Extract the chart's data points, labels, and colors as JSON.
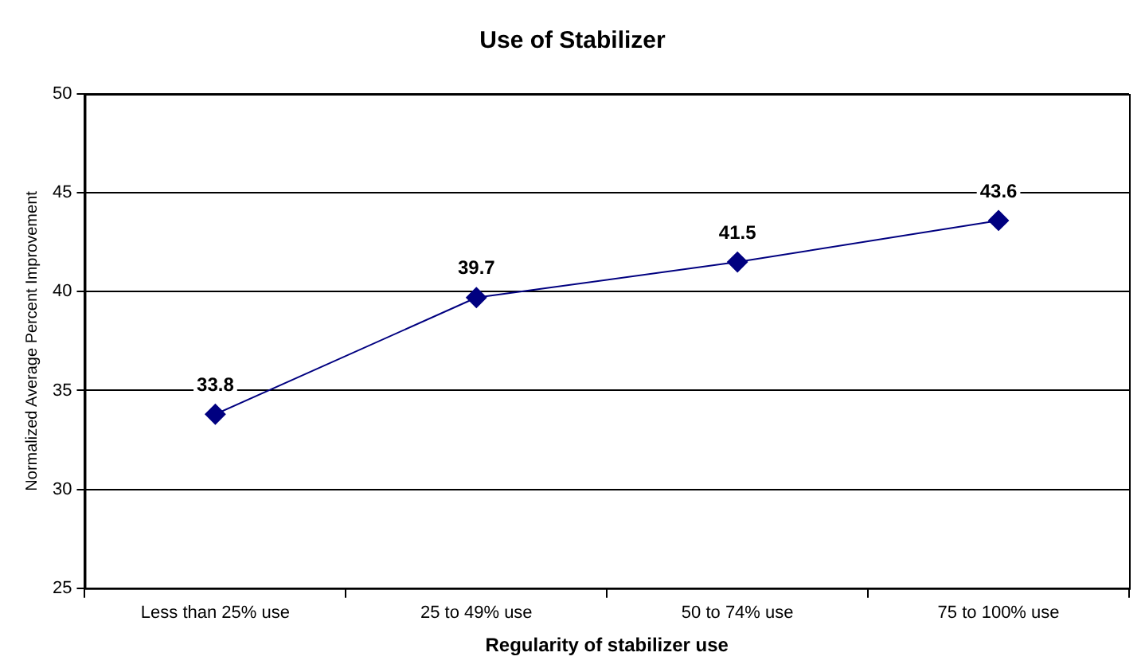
{
  "chart_data": {
    "type": "line",
    "title": "Use of Stabilizer",
    "xlabel": "Regularity of stabilizer use",
    "ylabel": "Normalized Average Percent Improvement",
    "categories": [
      "Less than 25% use",
      "25 to 49% use",
      "50 to 74% use",
      "75 to 100% use"
    ],
    "series": [
      {
        "color": "#000080",
        "values": [
          33.8,
          39.7,
          41.5,
          43.6
        ]
      }
    ],
    "ylim": [
      25,
      50
    ],
    "yticks": [
      25,
      30,
      35,
      40,
      45,
      50
    ],
    "grid": "y",
    "legend": false,
    "marker": "diamond",
    "line_style": "solid",
    "data_labels": true
  }
}
